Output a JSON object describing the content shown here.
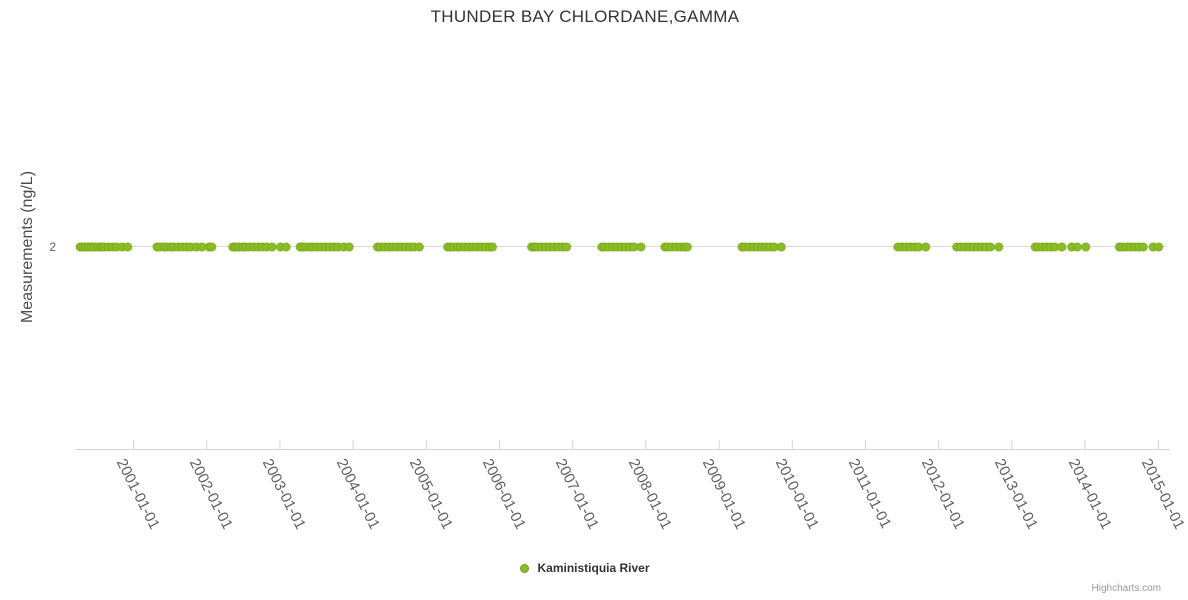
{
  "page": {
    "background": "#ffffff",
    "credits": "Highcharts.com"
  },
  "chart_data": {
    "type": "scatter",
    "title": "THUNDER BAY CHLORDANE,GAMMA",
    "xlabel": "",
    "ylabel": "Measurements (ng/L)",
    "x_axis": {
      "type": "datetime",
      "tick_interval": "1 year",
      "label_rotation_deg": 63,
      "tick_labels": [
        "2001-01-01",
        "2002-01-01",
        "2003-01-01",
        "2004-01-01",
        "2005-01-01",
        "2006-01-01",
        "2007-01-01",
        "2008-01-01",
        "2009-01-01",
        "2010-01-01",
        "2011-01-01",
        "2012-01-01",
        "2013-01-01",
        "2014-01-01",
        "2015-01-01"
      ]
    },
    "y_axis": {
      "tick_label": "2",
      "tick_value": 2
    },
    "legend": {
      "position": "bottom-center",
      "items": [
        {
          "label": "Kaministiquia River",
          "color": "#8bbc21"
        }
      ]
    },
    "grid": "single horizontal gridline at y=2",
    "series": [
      {
        "name": "Kaministiquia River",
        "color": "#8bbc21",
        "marker": "circle",
        "y_value": 2,
        "dates": [
          "2000-04-12",
          "2000-04-26",
          "2000-05-10",
          "2000-05-24",
          "2000-06-07",
          "2000-06-21",
          "2000-07-12",
          "2000-07-26",
          "2000-08-09",
          "2000-08-30",
          "2000-09-20",
          "2000-10-11",
          "2000-11-08",
          "2000-12-06",
          "2001-05-01",
          "2001-05-15",
          "2001-06-05",
          "2001-06-19",
          "2001-07-10",
          "2001-07-24",
          "2001-08-14",
          "2001-09-04",
          "2001-09-25",
          "2001-10-16",
          "2001-11-13",
          "2001-12-11",
          "2002-01-15",
          "2002-01-29",
          "2002-05-14",
          "2002-05-28",
          "2002-06-11",
          "2002-07-02",
          "2002-07-16",
          "2002-08-06",
          "2002-08-27",
          "2002-09-17",
          "2002-10-08",
          "2002-10-29",
          "2002-11-26",
          "2003-01-07",
          "2003-02-04",
          "2003-04-15",
          "2003-04-29",
          "2003-05-13",
          "2003-06-03",
          "2003-06-17",
          "2003-07-08",
          "2003-07-29",
          "2003-08-19",
          "2003-09-09",
          "2003-09-30",
          "2003-10-21",
          "2003-11-18",
          "2003-12-16",
          "2004-05-05",
          "2004-05-19",
          "2004-06-09",
          "2004-06-30",
          "2004-07-21",
          "2004-08-11",
          "2004-09-01",
          "2004-09-22",
          "2004-10-13",
          "2004-11-03",
          "2004-11-30",
          "2005-04-20",
          "2005-05-04",
          "2005-05-18",
          "2005-06-08",
          "2005-06-22",
          "2005-07-13",
          "2005-08-03",
          "2005-08-24",
          "2005-09-14",
          "2005-10-05",
          "2005-10-26",
          "2005-11-16",
          "2005-11-30",
          "2006-06-13",
          "2006-06-27",
          "2006-07-11",
          "2006-08-01",
          "2006-08-22",
          "2006-09-12",
          "2006-10-03",
          "2006-10-24",
          "2006-11-14",
          "2006-12-05",
          "2007-05-29",
          "2007-06-12",
          "2007-07-03",
          "2007-07-24",
          "2007-08-14",
          "2007-09-04",
          "2007-09-25",
          "2007-10-16",
          "2007-11-06",
          "2007-12-11",
          "2008-04-08",
          "2008-04-22",
          "2008-05-13",
          "2008-06-03",
          "2008-06-24",
          "2008-07-15",
          "2008-07-29",
          "2009-04-28",
          "2009-05-12",
          "2009-06-02",
          "2009-06-23",
          "2009-07-14",
          "2009-08-04",
          "2009-08-25",
          "2009-09-15",
          "2009-10-06",
          "2009-11-10",
          "2011-06-14",
          "2011-07-05",
          "2011-07-26",
          "2011-08-16",
          "2011-09-06",
          "2011-09-27",
          "2011-11-01",
          "2012-04-03",
          "2012-04-24",
          "2012-05-15",
          "2012-06-05",
          "2012-06-26",
          "2012-07-17",
          "2012-08-07",
          "2012-08-28",
          "2012-09-18",
          "2012-10-30",
          "2013-04-30",
          "2013-05-14",
          "2013-06-04",
          "2013-06-25",
          "2013-07-16",
          "2013-08-06",
          "2013-09-10",
          "2013-10-29",
          "2013-11-26",
          "2014-01-07",
          "2014-06-24",
          "2014-07-08",
          "2014-07-29",
          "2014-08-19",
          "2014-09-09",
          "2014-09-30",
          "2014-10-21",
          "2014-12-09",
          "2015-01-06"
        ]
      }
    ]
  }
}
